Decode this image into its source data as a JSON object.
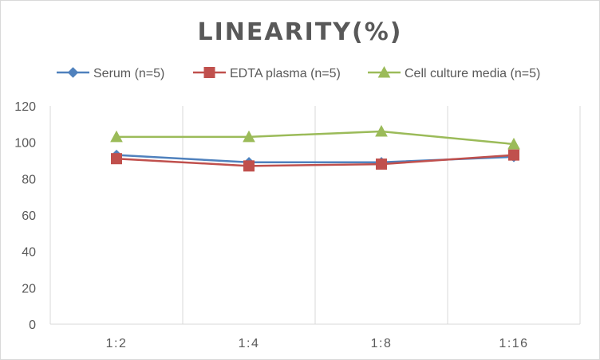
{
  "chart_data": {
    "type": "line",
    "title": "LINEARITY(%)",
    "xlabel": "",
    "ylabel": "",
    "categories": [
      "1:2",
      "1:4",
      "1:8",
      "1:16"
    ],
    "ylim": [
      0,
      120
    ],
    "yticks": [
      0,
      20,
      40,
      60,
      80,
      100,
      120
    ],
    "grid": "vertical-category",
    "legend_position": "top",
    "series": [
      {
        "name": "Serum (n=5)",
        "values": [
          93,
          89,
          89,
          92
        ],
        "color": "#4f81bd",
        "marker": "diamond"
      },
      {
        "name": "EDTA plasma (n=5)",
        "values": [
          91,
          87,
          88,
          93
        ],
        "color": "#c0504d",
        "marker": "square"
      },
      {
        "name": "Cell culture media (n=5)",
        "values": [
          103,
          103,
          106,
          99
        ],
        "color": "#9bbb59",
        "marker": "triangle"
      }
    ]
  }
}
